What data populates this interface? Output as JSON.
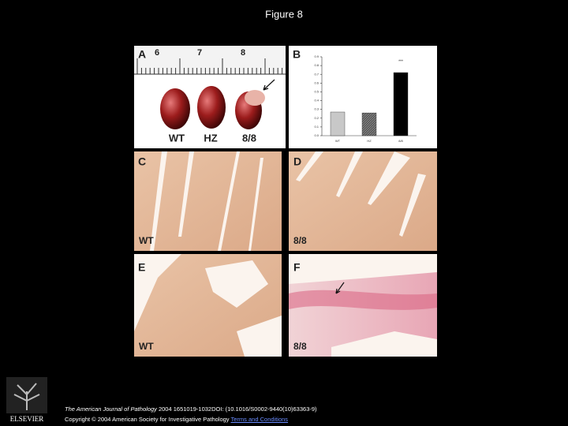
{
  "slide_title": "Figure 8",
  "panels": {
    "a": {
      "label": "A",
      "ruler_marks": [
        "6",
        "7",
        "8"
      ],
      "hearts": [
        "WT",
        "HZ",
        "8/8"
      ]
    },
    "b": {
      "label": "B",
      "chart_data": {
        "type": "bar",
        "categories": [
          "WT",
          "HZ",
          "8/8"
        ],
        "values": [
          0.27,
          0.26,
          0.72
        ],
        "colors": [
          "#c8c8c8",
          "#555555",
          "#000000"
        ],
        "annotation": "***",
        "ylim": [
          0,
          0.9
        ],
        "yticks": [
          {
            "value": 0,
            "label": "0.0"
          },
          {
            "value": 0.1,
            "label": "0.1"
          },
          {
            "value": 0.2,
            "label": "0.2"
          },
          {
            "value": 0.3,
            "label": "0.3"
          },
          {
            "value": 0.4,
            "label": "0.4"
          },
          {
            "value": 0.5,
            "label": "0.5"
          },
          {
            "value": 0.6,
            "label": "0.6"
          },
          {
            "value": 0.7,
            "label": "0.7"
          },
          {
            "value": 0.8,
            "label": "0.8"
          },
          {
            "value": 0.9,
            "label": "0.9"
          }
        ]
      }
    },
    "c": {
      "label": "C",
      "caption": "WT"
    },
    "d": {
      "label": "D",
      "caption": "8/8"
    },
    "e": {
      "label": "E",
      "caption": "WT"
    },
    "f": {
      "label": "F",
      "caption": "8/8"
    }
  },
  "footer": {
    "journal": "The American Journal of Pathology",
    "citation": " 2004 1651019-1032DOI: (10.1016/S0002-9440(10)63363-9)",
    "copyright": "Copyright © 2004 American Society for Investigative Pathology",
    "link": "Terms and Conditions",
    "publisher": "ELSEVIER"
  }
}
